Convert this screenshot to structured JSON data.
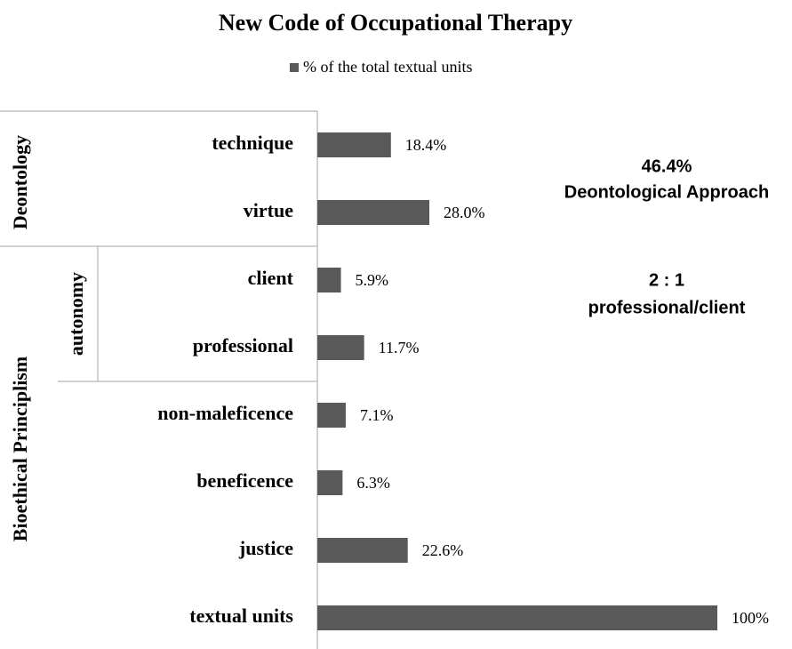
{
  "chart_data": {
    "type": "hbar",
    "title": "New Code of Occupational Therapy",
    "categories": [
      "technique",
      "virtue",
      "client",
      "professional",
      "non-maleficence",
      "beneficence",
      "justice",
      "textual units"
    ],
    "series": [
      {
        "name": "% of the total textual units",
        "color": "#595959",
        "values": [
          18.4,
          28.0,
          5.9,
          11.7,
          7.1,
          6.3,
          22.6,
          100
        ],
        "value_labels": [
          "18.4%",
          "28.0%",
          "5.9%",
          "11.7%",
          "7.1%",
          "6.3%",
          "22.6%",
          "100%"
        ]
      }
    ],
    "xlim": [
      0,
      100
    ],
    "group_labels": [
      "Deontology",
      "autonomy",
      "Bioethical Principlism"
    ],
    "annotations": [
      "46.4%",
      "Deontological Approach",
      "2 : 1",
      "professional/client"
    ],
    "legend": "top"
  }
}
